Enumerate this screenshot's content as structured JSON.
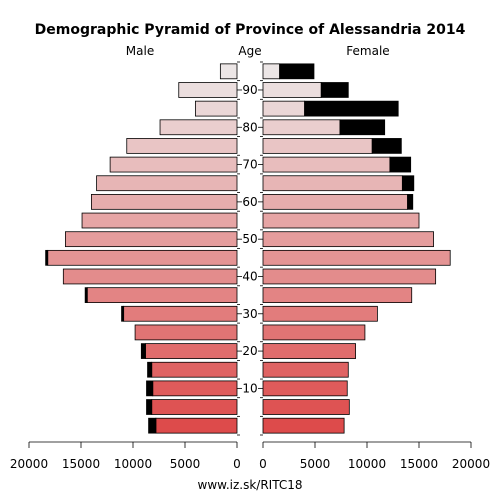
{
  "chart_data": {
    "type": "bar",
    "title": "Demographic Pyramid of Province of Alessandria 2014",
    "left_label": "Male",
    "center_label": "Age",
    "right_label": "Female",
    "footer": "www.iz.sk/RITC18",
    "age_groups": [
      "0-4",
      "5-9",
      "10-14",
      "15-19",
      "20-24",
      "25-29",
      "30-34",
      "35-39",
      "40-44",
      "45-49",
      "50-54",
      "55-59",
      "60-64",
      "65-69",
      "70-74",
      "75-79",
      "80-84",
      "85-89",
      "90-94",
      "95+"
    ],
    "age_ticks": [
      {
        "label": "10",
        "age": 10
      },
      {
        "label": "20",
        "age": 20
      },
      {
        "label": "30",
        "age": 30
      },
      {
        "label": "40",
        "age": 40
      },
      {
        "label": "50",
        "age": 50
      },
      {
        "label": "60",
        "age": 60
      },
      {
        "label": "70",
        "age": 70
      },
      {
        "label": "80",
        "age": 80
      },
      {
        "label": "90",
        "age": 90
      }
    ],
    "x_ticks": [
      {
        "label": "20000",
        "value": 20000
      },
      {
        "label": "15000",
        "value": 15000
      },
      {
        "label": "10000",
        "value": 10000
      },
      {
        "label": "5000",
        "value": 5000
      },
      {
        "label": "0",
        "value": 0
      }
    ],
    "xlim": [
      0,
      20000
    ],
    "series": [
      {
        "name": "Male",
        "base": [
          7800,
          8200,
          8100,
          8200,
          8800,
          9800,
          10900,
          14400,
          16700,
          18200,
          16500,
          14900,
          14000,
          13500,
          12200,
          10600,
          7400,
          4000,
          5600,
          1600
        ],
        "surplus": [
          700,
          500,
          600,
          400,
          400,
          0,
          200,
          200,
          0,
          200,
          0,
          0,
          0,
          0,
          0,
          0,
          0,
          0,
          0,
          0
        ]
      },
      {
        "name": "Female",
        "base": [
          7800,
          8300,
          8100,
          8200,
          8900,
          9800,
          11000,
          14300,
          16600,
          18000,
          16400,
          15000,
          13900,
          13400,
          12200,
          10500,
          7400,
          4000,
          5600,
          1600
        ],
        "surplus": [
          0,
          0,
          0,
          0,
          0,
          0,
          0,
          0,
          0,
          0,
          0,
          0,
          500,
          1100,
          2000,
          2800,
          4300,
          9000,
          2600,
          3300
        ]
      }
    ],
    "colors": {
      "young": "#dd4b4b",
      "old": "#ece6e6",
      "surplus": "#000000",
      "outline": "#000000"
    }
  }
}
